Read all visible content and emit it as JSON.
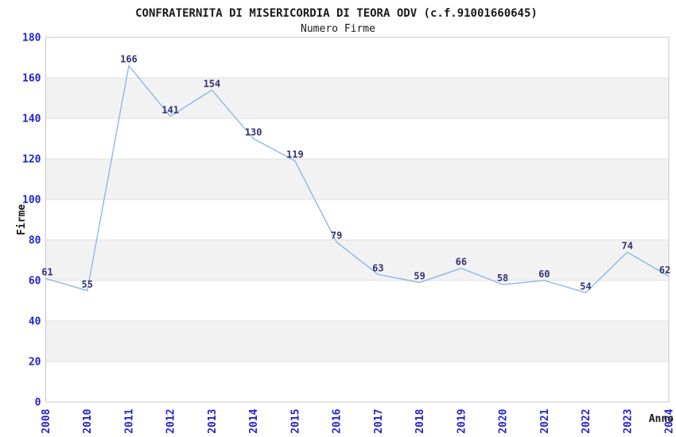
{
  "header": {
    "title": "CONFRATERNITA DI MISERICORDIA DI TEORA ODV (c.f.91001660645)",
    "subtitle": "Numero Firme"
  },
  "chart_data": {
    "type": "line",
    "title": "CONFRATERNITA DI MISERICORDIA DI TEORA ODV (c.f.91001660645)",
    "subtitle": "Numero Firme",
    "xlabel": "Anno",
    "ylabel": "Firme",
    "categories": [
      "2008",
      "2010",
      "2011",
      "2012",
      "2013",
      "2014",
      "2015",
      "2016",
      "2017",
      "2018",
      "2019",
      "2020",
      "2021",
      "2022",
      "2023",
      "2024"
    ],
    "values": [
      61,
      55,
      166,
      141,
      154,
      130,
      119,
      79,
      63,
      59,
      66,
      58,
      60,
      54,
      74,
      62
    ],
    "ylim": [
      0,
      180
    ],
    "ytick_step": 20,
    "grid": true,
    "legend_position": "none",
    "data_labels_visible": true,
    "colors": {
      "line": "#86b3e9",
      "tick_label": "#2323cd",
      "data_label": "#333377",
      "band": "#f2f2f2",
      "gridline": "#e0e0e0",
      "plot_border": "#c8c8c8",
      "title_text": "#1a1a1a",
      "background": "#ffffff"
    }
  }
}
